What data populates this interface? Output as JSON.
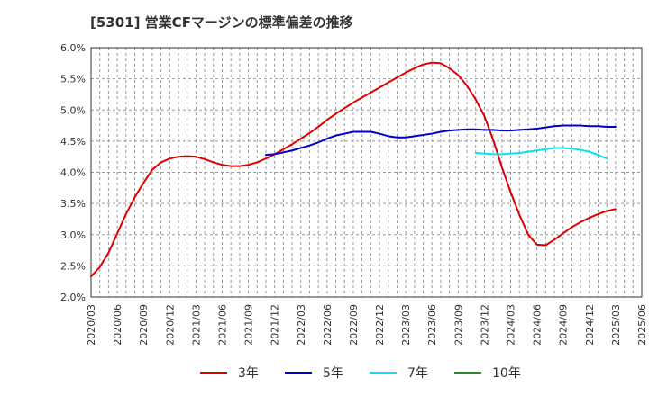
{
  "chart_data": {
    "type": "line",
    "title": "[5301]  営業CFマージンの標準偏差の推移",
    "xlabel": "",
    "ylabel": "",
    "ylim": [
      0.02,
      0.06
    ],
    "yticks": [
      "2.0%",
      "2.5%",
      "3.0%",
      "3.5%",
      "4.0%",
      "4.5%",
      "5.0%",
      "5.5%",
      "6.0%"
    ],
    "ytick_values": [
      0.02,
      0.025,
      0.03,
      0.035,
      0.04,
      0.045,
      0.05,
      0.055,
      0.06
    ],
    "xticks": [
      "2020/03",
      "2020/06",
      "2020/09",
      "2020/12",
      "2021/03",
      "2021/06",
      "2021/09",
      "2021/12",
      "2022/03",
      "2022/06",
      "2022/09",
      "2022/12",
      "2023/03",
      "2023/06",
      "2023/09",
      "2023/12",
      "2024/03",
      "2024/06",
      "2024/09",
      "2024/12",
      "2025/03",
      "2025/06"
    ],
    "xlim": [
      "2020/03",
      "2025/06"
    ],
    "grid": true,
    "legend_position": "bottom",
    "series": [
      {
        "name": "3年",
        "color": "#dd0000",
        "points": [
          [
            "2020/03",
            0.0233
          ],
          [
            "2020/04",
            0.0248
          ],
          [
            "2020/05",
            0.0271
          ],
          [
            "2020/06",
            0.0302
          ],
          [
            "2020/07",
            0.0333
          ],
          [
            "2020/08",
            0.036
          ],
          [
            "2020/09",
            0.0383
          ],
          [
            "2020/10",
            0.0404
          ],
          [
            "2020/11",
            0.0416
          ],
          [
            "2020/12",
            0.0422
          ],
          [
            "2021/01",
            0.0425
          ],
          [
            "2021/02",
            0.0426
          ],
          [
            "2021/03",
            0.0425
          ],
          [
            "2021/04",
            0.0421
          ],
          [
            "2021/05",
            0.0416
          ],
          [
            "2021/06",
            0.0412
          ],
          [
            "2021/07",
            0.041
          ],
          [
            "2021/08",
            0.041
          ],
          [
            "2021/09",
            0.0412
          ],
          [
            "2021/10",
            0.0416
          ],
          [
            "2021/11",
            0.0422
          ],
          [
            "2021/12",
            0.0429
          ],
          [
            "2022/01",
            0.0437
          ],
          [
            "2022/02",
            0.0445
          ],
          [
            "2022/03",
            0.0454
          ],
          [
            "2022/04",
            0.0463
          ],
          [
            "2022/05",
            0.0473
          ],
          [
            "2022/06",
            0.0484
          ],
          [
            "2022/07",
            0.0494
          ],
          [
            "2022/08",
            0.0503
          ],
          [
            "2022/09",
            0.0512
          ],
          [
            "2022/10",
            0.052
          ],
          [
            "2022/11",
            0.0528
          ],
          [
            "2022/12",
            0.0536
          ],
          [
            "2023/01",
            0.0544
          ],
          [
            "2023/02",
            0.0552
          ],
          [
            "2023/03",
            0.056
          ],
          [
            "2023/04",
            0.0567
          ],
          [
            "2023/05",
            0.0573
          ],
          [
            "2023/06",
            0.0576
          ],
          [
            "2023/07",
            0.0575
          ],
          [
            "2023/08",
            0.0567
          ],
          [
            "2023/09",
            0.0556
          ],
          [
            "2023/10",
            0.0539
          ],
          [
            "2023/11",
            0.0517
          ],
          [
            "2023/12",
            0.049
          ],
          [
            "2024/01",
            0.0452
          ],
          [
            "2024/02",
            0.0408
          ],
          [
            "2024/03",
            0.0368
          ],
          [
            "2024/04",
            0.0332
          ],
          [
            "2024/05",
            0.03
          ],
          [
            "2024/06",
            0.0284
          ],
          [
            "2024/07",
            0.0283
          ],
          [
            "2024/08",
            0.0292
          ],
          [
            "2024/09",
            0.0302
          ],
          [
            "2024/10",
            0.0312
          ],
          [
            "2024/11",
            0.032
          ],
          [
            "2024/12",
            0.0327
          ],
          [
            "2025/01",
            0.0333
          ],
          [
            "2025/02",
            0.0338
          ],
          [
            "2025/03",
            0.0341
          ]
        ]
      },
      {
        "name": "5年",
        "color": "#0000cc",
        "points": [
          [
            "2021/11",
            0.0428
          ],
          [
            "2021/12",
            0.0429
          ],
          [
            "2022/01",
            0.0432
          ],
          [
            "2022/02",
            0.0435
          ],
          [
            "2022/03",
            0.0439
          ],
          [
            "2022/04",
            0.0443
          ],
          [
            "2022/05",
            0.0448
          ],
          [
            "2022/06",
            0.0454
          ],
          [
            "2022/07",
            0.0459
          ],
          [
            "2022/08",
            0.0462
          ],
          [
            "2022/09",
            0.0465
          ],
          [
            "2022/10",
            0.0465
          ],
          [
            "2022/11",
            0.0465
          ],
          [
            "2022/12",
            0.0462
          ],
          [
            "2023/01",
            0.0458
          ],
          [
            "2023/02",
            0.0456
          ],
          [
            "2023/03",
            0.0456
          ],
          [
            "2023/04",
            0.0458
          ],
          [
            "2023/05",
            0.046
          ],
          [
            "2023/06",
            0.0462
          ],
          [
            "2023/07",
            0.0465
          ],
          [
            "2023/08",
            0.0467
          ],
          [
            "2023/09",
            0.0468
          ],
          [
            "2023/10",
            0.0469
          ],
          [
            "2023/11",
            0.0469
          ],
          [
            "2023/12",
            0.0468
          ],
          [
            "2024/01",
            0.0468
          ],
          [
            "2024/02",
            0.0467
          ],
          [
            "2024/03",
            0.0467
          ],
          [
            "2024/04",
            0.0468
          ],
          [
            "2024/05",
            0.0469
          ],
          [
            "2024/06",
            0.047
          ],
          [
            "2024/07",
            0.0472
          ],
          [
            "2024/08",
            0.0474
          ],
          [
            "2024/09",
            0.0475
          ],
          [
            "2024/10",
            0.0475
          ],
          [
            "2024/11",
            0.0475
          ],
          [
            "2024/12",
            0.0474
          ],
          [
            "2025/01",
            0.0474
          ],
          [
            "2025/02",
            0.0473
          ],
          [
            "2025/03",
            0.0473
          ]
        ]
      },
      {
        "name": "7年",
        "color": "#00e5ee",
        "points": [
          [
            "2023/11",
            0.0431
          ],
          [
            "2023/12",
            0.043
          ],
          [
            "2024/01",
            0.0429
          ],
          [
            "2024/02",
            0.0429
          ],
          [
            "2024/03",
            0.043
          ],
          [
            "2024/04",
            0.0431
          ],
          [
            "2024/05",
            0.0433
          ],
          [
            "2024/06",
            0.0435
          ],
          [
            "2024/07",
            0.0437
          ],
          [
            "2024/08",
            0.0439
          ],
          [
            "2024/09",
            0.0439
          ],
          [
            "2024/10",
            0.0438
          ],
          [
            "2024/11",
            0.0436
          ],
          [
            "2024/12",
            0.0433
          ],
          [
            "2025/01",
            0.0428
          ],
          [
            "2025/02",
            0.0422
          ]
        ]
      },
      {
        "name": "10年",
        "color": "#228b22",
        "points": []
      }
    ]
  }
}
